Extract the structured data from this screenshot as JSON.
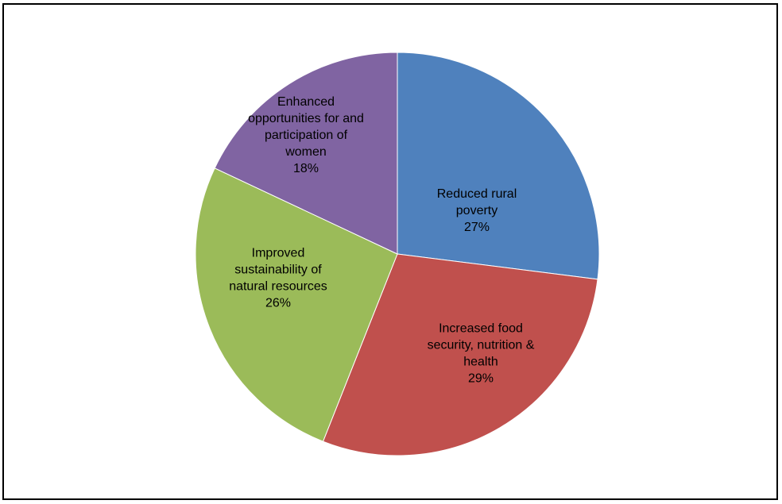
{
  "chart_data": {
    "type": "pie",
    "title": "",
    "slices": [
      {
        "label_lines": [
          "Reduced rural",
          "poverty"
        ],
        "value": 27,
        "value_label": "27%",
        "color": "#4F81BD"
      },
      {
        "label_lines": [
          "Increased food",
          "security, nutrition &",
          "health"
        ],
        "value": 29,
        "value_label": "29%",
        "color": "#C0504D"
      },
      {
        "label_lines": [
          "Improved",
          "sustainability of",
          "natural resources"
        ],
        "value": 26,
        "value_label": "26%",
        "color": "#9BBB59"
      },
      {
        "label_lines": [
          "Enhanced",
          "opportunities for and",
          "participation of",
          "women"
        ],
        "value": 18,
        "value_label": "18%",
        "color": "#8064A2"
      }
    ],
    "start_angle": "12 o'clock",
    "direction": "clockwise",
    "legend": "none",
    "data_labels": "inside"
  }
}
